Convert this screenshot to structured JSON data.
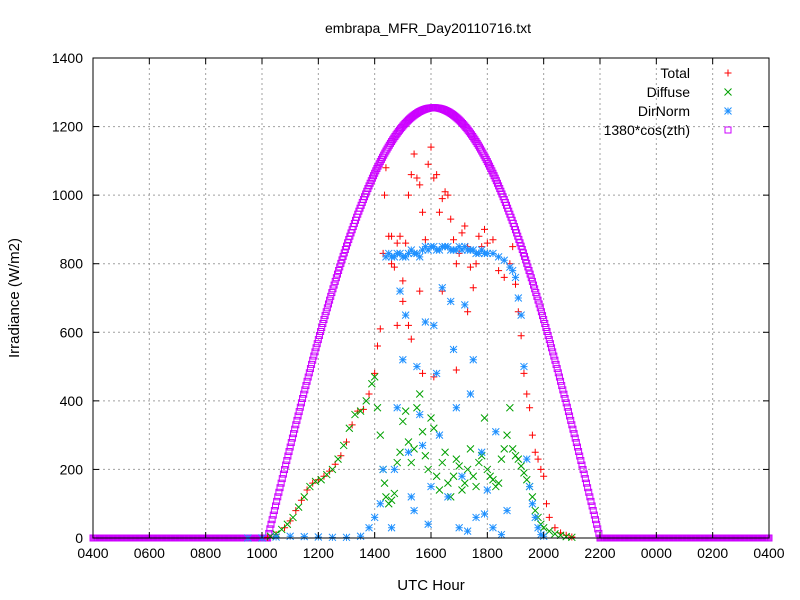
{
  "chart_data": {
    "type": "scatter",
    "title": "embrapa_MFR_Day20110716.txt",
    "xlabel": "UTC Hour",
    "ylabel": "Irradiance (W/m2)",
    "xlim": [
      4,
      28
    ],
    "ylim": [
      0,
      1400
    ],
    "x_ticks": [
      {
        "value": 4,
        "label": "0400"
      },
      {
        "value": 6,
        "label": "0600"
      },
      {
        "value": 8,
        "label": "0800"
      },
      {
        "value": 10,
        "label": "1000"
      },
      {
        "value": 12,
        "label": "1200"
      },
      {
        "value": 14,
        "label": "1400"
      },
      {
        "value": 16,
        "label": "1600"
      },
      {
        "value": 18,
        "label": "1800"
      },
      {
        "value": 20,
        "label": "2000"
      },
      {
        "value": 22,
        "label": "2200"
      },
      {
        "value": 24,
        "label": "0000"
      },
      {
        "value": 26,
        "label": "0200"
      },
      {
        "value": 28,
        "label": "0400"
      }
    ],
    "y_ticks": [
      0,
      200,
      400,
      600,
      800,
      1000,
      1200,
      1400
    ],
    "grid": true,
    "legend_position": "top-right",
    "series": [
      {
        "name": "Total",
        "marker": "plus",
        "color": "#ff0000",
        "points": [
          [
            10.2,
            2
          ],
          [
            10.5,
            10
          ],
          [
            10.8,
            30
          ],
          [
            11.0,
            50
          ],
          [
            11.2,
            80
          ],
          [
            11.4,
            110
          ],
          [
            11.6,
            140
          ],
          [
            11.8,
            160
          ],
          [
            12.0,
            170
          ],
          [
            12.2,
            180
          ],
          [
            12.4,
            195
          ],
          [
            12.6,
            215
          ],
          [
            12.8,
            240
          ],
          [
            13.0,
            280
          ],
          [
            13.2,
            330
          ],
          [
            13.4,
            370
          ],
          [
            13.6,
            375
          ],
          [
            13.8,
            420
          ],
          [
            14.0,
            480
          ],
          [
            14.1,
            560
          ],
          [
            14.2,
            610
          ],
          [
            14.3,
            830
          ],
          [
            14.35,
            1000
          ],
          [
            14.4,
            1080
          ],
          [
            14.5,
            880
          ],
          [
            14.6,
            800
          ],
          [
            14.7,
            790
          ],
          [
            14.8,
            860
          ],
          [
            14.9,
            880
          ],
          [
            15.0,
            750
          ],
          [
            15.1,
            860
          ],
          [
            15.2,
            1000
          ],
          [
            15.3,
            1060
          ],
          [
            15.4,
            1120
          ],
          [
            15.5,
            1050
          ],
          [
            15.6,
            1030
          ],
          [
            15.7,
            950
          ],
          [
            15.8,
            870
          ],
          [
            15.9,
            1090
          ],
          [
            16.0,
            1140
          ],
          [
            16.1,
            1050
          ],
          [
            16.2,
            1060
          ],
          [
            16.3,
            950
          ],
          [
            16.4,
            990
          ],
          [
            16.5,
            1010
          ],
          [
            16.6,
            1000
          ],
          [
            16.7,
            930
          ],
          [
            16.8,
            870
          ],
          [
            16.9,
            800
          ],
          [
            17.0,
            830
          ],
          [
            17.1,
            890
          ],
          [
            17.2,
            910
          ],
          [
            17.3,
            850
          ],
          [
            17.4,
            790
          ],
          [
            17.5,
            730
          ],
          [
            17.6,
            800
          ],
          [
            17.7,
            880
          ],
          [
            17.8,
            850
          ],
          [
            17.9,
            900
          ],
          [
            18.0,
            860
          ],
          [
            18.2,
            870
          ],
          [
            18.4,
            780
          ],
          [
            18.6,
            760
          ],
          [
            18.8,
            800
          ],
          [
            18.9,
            850
          ],
          [
            19.0,
            740
          ],
          [
            19.1,
            660
          ],
          [
            19.2,
            590
          ],
          [
            19.3,
            480
          ],
          [
            19.4,
            420
          ],
          [
            19.5,
            380
          ],
          [
            19.6,
            300
          ],
          [
            19.7,
            250
          ],
          [
            19.8,
            230
          ],
          [
            19.9,
            200
          ],
          [
            20.0,
            180
          ],
          [
            20.1,
            100
          ],
          [
            20.2,
            60
          ],
          [
            20.4,
            30
          ],
          [
            20.6,
            15
          ],
          [
            20.8,
            8
          ],
          [
            21.0,
            3
          ],
          [
            14.6,
            880
          ],
          [
            15.6,
            720
          ],
          [
            16.4,
            720
          ],
          [
            15.2,
            620
          ],
          [
            16.9,
            490
          ],
          [
            17.3,
            660
          ],
          [
            15.7,
            480
          ],
          [
            16.1,
            470
          ],
          [
            15.3,
            580
          ],
          [
            14.8,
            620
          ],
          [
            15.0,
            690
          ]
        ]
      },
      {
        "name": "Diffuse",
        "marker": "cross",
        "color": "#00a000",
        "points": [
          [
            10.3,
            5
          ],
          [
            10.5,
            12
          ],
          [
            10.7,
            25
          ],
          [
            10.9,
            40
          ],
          [
            11.1,
            60
          ],
          [
            11.3,
            90
          ],
          [
            11.5,
            120
          ],
          [
            11.7,
            150
          ],
          [
            11.9,
            165
          ],
          [
            12.1,
            170
          ],
          [
            12.3,
            185
          ],
          [
            12.5,
            200
          ],
          [
            12.7,
            230
          ],
          [
            12.9,
            270
          ],
          [
            13.1,
            320
          ],
          [
            13.3,
            360
          ],
          [
            13.5,
            370
          ],
          [
            13.7,
            400
          ],
          [
            13.9,
            450
          ],
          [
            14.0,
            470
          ],
          [
            14.1,
            380
          ],
          [
            14.2,
            300
          ],
          [
            14.3,
            200
          ],
          [
            14.35,
            160
          ],
          [
            14.4,
            120
          ],
          [
            14.5,
            100
          ],
          [
            14.6,
            110
          ],
          [
            14.7,
            130
          ],
          [
            14.8,
            220
          ],
          [
            14.9,
            250
          ],
          [
            15.0,
            340
          ],
          [
            15.1,
            370
          ],
          [
            15.2,
            280
          ],
          [
            15.3,
            220
          ],
          [
            15.4,
            260
          ],
          [
            15.5,
            380
          ],
          [
            15.6,
            420
          ],
          [
            15.7,
            310
          ],
          [
            15.8,
            240
          ],
          [
            15.9,
            200
          ],
          [
            16.0,
            350
          ],
          [
            16.1,
            320
          ],
          [
            16.2,
            180
          ],
          [
            16.3,
            140
          ],
          [
            16.4,
            220
          ],
          [
            16.5,
            250
          ],
          [
            16.6,
            160
          ],
          [
            16.7,
            120
          ],
          [
            16.8,
            180
          ],
          [
            16.9,
            230
          ],
          [
            17.0,
            210
          ],
          [
            17.1,
            140
          ],
          [
            17.2,
            160
          ],
          [
            17.3,
            200
          ],
          [
            17.4,
            260
          ],
          [
            17.5,
            180
          ],
          [
            17.6,
            150
          ],
          [
            17.7,
            220
          ],
          [
            17.8,
            240
          ],
          [
            17.9,
            350
          ],
          [
            18.0,
            200
          ],
          [
            18.1,
            180
          ],
          [
            18.2,
            170
          ],
          [
            18.3,
            150
          ],
          [
            18.4,
            160
          ],
          [
            18.5,
            230
          ],
          [
            18.6,
            260
          ],
          [
            18.7,
            300
          ],
          [
            18.8,
            380
          ],
          [
            18.9,
            260
          ],
          [
            19.0,
            240
          ],
          [
            19.1,
            230
          ],
          [
            19.2,
            210
          ],
          [
            19.3,
            190
          ],
          [
            19.4,
            170
          ],
          [
            19.5,
            150
          ],
          [
            19.6,
            120
          ],
          [
            19.7,
            80
          ],
          [
            19.8,
            60
          ],
          [
            19.9,
            40
          ],
          [
            20.0,
            30
          ],
          [
            20.2,
            20
          ],
          [
            20.4,
            12
          ],
          [
            20.6,
            8
          ],
          [
            20.8,
            4
          ],
          [
            21.0,
            2
          ]
        ]
      },
      {
        "name": "DirNorm",
        "marker": "star",
        "color": "#1e90ff",
        "points": [
          [
            9.5,
            0
          ],
          [
            10.0,
            0
          ],
          [
            10.5,
            3
          ],
          [
            11.0,
            5
          ],
          [
            11.5,
            4
          ],
          [
            12.0,
            3
          ],
          [
            12.5,
            2
          ],
          [
            13.0,
            2
          ],
          [
            13.5,
            5
          ],
          [
            13.8,
            30
          ],
          [
            14.0,
            60
          ],
          [
            14.2,
            100
          ],
          [
            14.3,
            200
          ],
          [
            14.4,
            820
          ],
          [
            14.5,
            830
          ],
          [
            14.6,
            820
          ],
          [
            14.7,
            820
          ],
          [
            14.8,
            830
          ],
          [
            14.9,
            830
          ],
          [
            15.0,
            820
          ],
          [
            15.1,
            820
          ],
          [
            15.2,
            830
          ],
          [
            15.3,
            840
          ],
          [
            15.4,
            830
          ],
          [
            15.5,
            830
          ],
          [
            15.6,
            820
          ],
          [
            15.7,
            840
          ],
          [
            15.8,
            850
          ],
          [
            15.9,
            840
          ],
          [
            16.0,
            850
          ],
          [
            16.1,
            850
          ],
          [
            16.2,
            840
          ],
          [
            16.3,
            840
          ],
          [
            16.4,
            850
          ],
          [
            16.5,
            850
          ],
          [
            16.6,
            850
          ],
          [
            16.7,
            840
          ],
          [
            16.8,
            840
          ],
          [
            16.9,
            840
          ],
          [
            17.0,
            850
          ],
          [
            17.1,
            840
          ],
          [
            17.2,
            850
          ],
          [
            17.3,
            840
          ],
          [
            17.4,
            840
          ],
          [
            17.5,
            840
          ],
          [
            17.6,
            830
          ],
          [
            17.7,
            830
          ],
          [
            17.8,
            840
          ],
          [
            17.9,
            830
          ],
          [
            18.0,
            830
          ],
          [
            18.2,
            830
          ],
          [
            18.4,
            820
          ],
          [
            18.6,
            810
          ],
          [
            18.8,
            790
          ],
          [
            18.9,
            780
          ],
          [
            19.0,
            760
          ],
          [
            19.1,
            700
          ],
          [
            19.2,
            650
          ],
          [
            19.3,
            500
          ],
          [
            19.4,
            230
          ],
          [
            19.5,
            150
          ],
          [
            19.6,
            100
          ],
          [
            19.7,
            60
          ],
          [
            19.8,
            30
          ],
          [
            19.9,
            10
          ],
          [
            20.0,
            5
          ],
          [
            14.6,
            30
          ],
          [
            14.8,
            380
          ],
          [
            15.0,
            520
          ],
          [
            15.2,
            250
          ],
          [
            15.4,
            80
          ],
          [
            15.6,
            360
          ],
          [
            15.8,
            630
          ],
          [
            16.0,
            150
          ],
          [
            16.2,
            480
          ],
          [
            16.4,
            730
          ],
          [
            16.6,
            120
          ],
          [
            16.8,
            550
          ],
          [
            17.0,
            30
          ],
          [
            17.2,
            680
          ],
          [
            17.4,
            420
          ],
          [
            17.6,
            60
          ],
          [
            17.8,
            250
          ],
          [
            18.0,
            140
          ],
          [
            18.2,
            30
          ],
          [
            15.1,
            650
          ],
          [
            15.5,
            500
          ],
          [
            15.9,
            40
          ],
          [
            16.3,
            300
          ],
          [
            16.7,
            690
          ],
          [
            17.1,
            180
          ],
          [
            17.5,
            520
          ],
          [
            17.9,
            70
          ],
          [
            18.3,
            310
          ],
          [
            18.5,
            10
          ],
          [
            18.7,
            80
          ],
          [
            15.3,
            120
          ],
          [
            16.1,
            620
          ],
          [
            16.9,
            380
          ],
          [
            17.3,
            20
          ],
          [
            14.7,
            200
          ],
          [
            14.9,
            720
          ],
          [
            15.7,
            270
          ]
        ]
      },
      {
        "name": "1380*cos(zth)",
        "marker": "square",
        "color": "#cc00ff",
        "curve": {
          "x_rise": 10.2,
          "x_set": 22.0,
          "peak": 1255,
          "peak_x": 16.1
        }
      }
    ]
  }
}
